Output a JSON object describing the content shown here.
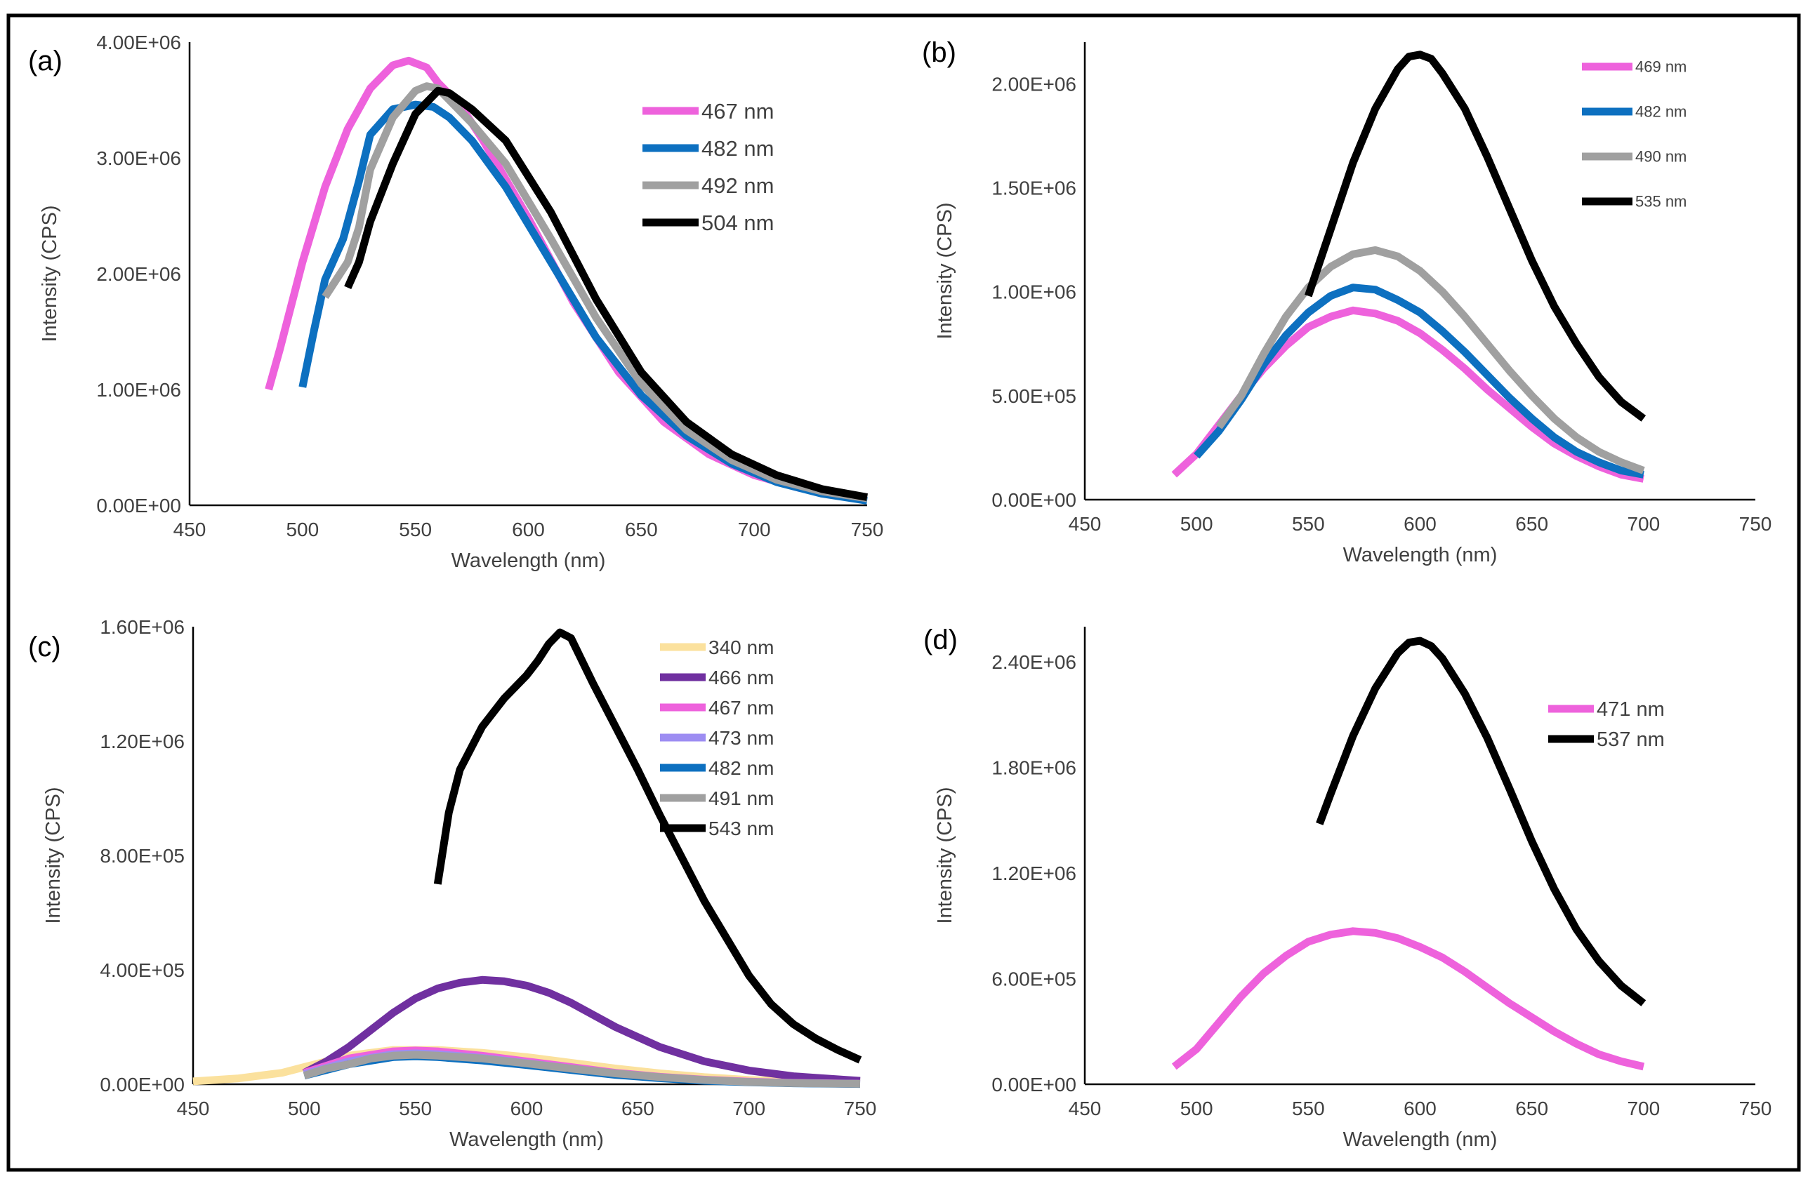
{
  "colors": {
    "pink": "#ee62dc",
    "blue": "#0d70c0",
    "gray": "#a0a0a0",
    "black": "#000000",
    "yellow": "#fbe19d",
    "purple": "#7030a0",
    "lavender": "#9d8df2",
    "frame": "#000000",
    "axis": "#000000",
    "text": "#404040"
  },
  "chart_data": [
    {
      "panel": "(a)",
      "type": "line",
      "xlabel": "Wavelength (nm)",
      "ylabel": "Intensity (CPS)",
      "xlim": [
        450,
        750
      ],
      "xticks": [
        "450",
        "500",
        "550",
        "600",
        "650",
        "700",
        "750"
      ],
      "xtick_values": [
        450,
        500,
        550,
        600,
        650,
        700,
        750
      ],
      "ylim": [
        0,
        4000000
      ],
      "yticks": [
        "0.00E+00",
        "1.00E+06",
        "2.00E+06",
        "3.00E+06",
        "4.00E+06"
      ],
      "ytick_values": [
        0,
        1000000,
        2000000,
        3000000,
        4000000
      ],
      "legend_position": "upper-right",
      "series": [
        {
          "name": "467 nm",
          "color": "pink",
          "x": [
            485,
            490,
            500,
            510,
            520,
            530,
            540,
            547,
            555,
            560,
            570,
            580,
            600,
            620,
            640,
            660,
            680,
            700,
            720,
            740,
            750
          ],
          "values": [
            1000000,
            1350000,
            2100000,
            2750000,
            3250000,
            3600000,
            3800000,
            3840000,
            3780000,
            3650000,
            3450000,
            3150000,
            2480000,
            1750000,
            1150000,
            720000,
            440000,
            260000,
            150000,
            90000,
            70000
          ]
        },
        {
          "name": "482 nm",
          "color": "blue",
          "x": [
            500,
            505,
            510,
            518,
            525,
            530,
            540,
            550,
            558,
            565,
            575,
            590,
            610,
            630,
            650,
            670,
            690,
            710,
            730,
            750
          ],
          "values": [
            1020000,
            1500000,
            1950000,
            2300000,
            2800000,
            3200000,
            3420000,
            3460000,
            3440000,
            3350000,
            3150000,
            2750000,
            2100000,
            1450000,
            950000,
            600000,
            360000,
            200000,
            100000,
            40000
          ]
        },
        {
          "name": "492 nm",
          "color": "gray",
          "x": [
            510,
            515,
            520,
            525,
            530,
            540,
            550,
            555,
            560,
            565,
            575,
            590,
            610,
            630,
            650,
            670,
            690,
            710,
            730,
            750
          ],
          "values": [
            1800000,
            1950000,
            2100000,
            2400000,
            2900000,
            3350000,
            3580000,
            3620000,
            3600000,
            3500000,
            3300000,
            2950000,
            2300000,
            1620000,
            1050000,
            650000,
            390000,
            220000,
            120000,
            60000
          ]
        },
        {
          "name": "504 nm",
          "color": "black",
          "x": [
            520,
            525,
            530,
            540,
            550,
            560,
            565,
            575,
            590,
            610,
            630,
            650,
            670,
            690,
            710,
            730,
            750
          ],
          "values": [
            1880000,
            2100000,
            2450000,
            2950000,
            3380000,
            3580000,
            3560000,
            3420000,
            3150000,
            2530000,
            1780000,
            1150000,
            720000,
            440000,
            260000,
            140000,
            70000
          ]
        }
      ]
    },
    {
      "panel": "(b)",
      "type": "line",
      "xlabel": "Wavelength (nm)",
      "ylabel": "Intensity (CPS)",
      "xlim": [
        450,
        750
      ],
      "xticks": [
        "450",
        "500",
        "550",
        "600",
        "650",
        "700",
        "750"
      ],
      "xtick_values": [
        450,
        500,
        550,
        600,
        650,
        700,
        750
      ],
      "ylim": [
        0,
        2200000
      ],
      "yticks": [
        "0.00E+00",
        "5.00E+05",
        "1.00E+06",
        "1.50E+06",
        "2.00E+06"
      ],
      "ytick_values": [
        0,
        500000,
        1000000,
        1500000,
        2000000
      ],
      "legend_position": "upper-right",
      "series": [
        {
          "name": "469 nm",
          "color": "pink",
          "x": [
            490,
            500,
            510,
            520,
            530,
            540,
            550,
            560,
            570,
            580,
            590,
            600,
            610,
            620,
            630,
            640,
            650,
            660,
            670,
            680,
            690,
            700
          ],
          "values": [
            120000,
            220000,
            360000,
            500000,
            630000,
            740000,
            830000,
            880000,
            910000,
            895000,
            860000,
            800000,
            720000,
            630000,
            530000,
            440000,
            350000,
            270000,
            210000,
            160000,
            120000,
            100000
          ]
        },
        {
          "name": "482 nm",
          "color": "blue",
          "x": [
            500,
            510,
            520,
            530,
            540,
            550,
            560,
            570,
            580,
            590,
            600,
            610,
            620,
            630,
            640,
            650,
            660,
            670,
            680,
            690,
            700
          ],
          "values": [
            210000,
            330000,
            480000,
            650000,
            790000,
            900000,
            980000,
            1020000,
            1010000,
            960000,
            900000,
            810000,
            710000,
            600000,
            490000,
            390000,
            300000,
            230000,
            180000,
            140000,
            120000
          ]
        },
        {
          "name": "490 nm",
          "color": "gray",
          "x": [
            510,
            520,
            530,
            540,
            550,
            560,
            570,
            580,
            590,
            600,
            610,
            620,
            630,
            640,
            650,
            660,
            670,
            680,
            690,
            700
          ],
          "values": [
            350000,
            500000,
            700000,
            880000,
            1020000,
            1120000,
            1180000,
            1200000,
            1170000,
            1100000,
            1000000,
            880000,
            750000,
            620000,
            500000,
            390000,
            300000,
            230000,
            180000,
            140000
          ]
        },
        {
          "name": "535 nm",
          "color": "black",
          "x": [
            550,
            560,
            570,
            580,
            590,
            595,
            600,
            605,
            610,
            620,
            630,
            640,
            650,
            660,
            670,
            680,
            690,
            700
          ],
          "values": [
            980000,
            1300000,
            1620000,
            1880000,
            2070000,
            2130000,
            2140000,
            2120000,
            2050000,
            1880000,
            1650000,
            1400000,
            1150000,
            930000,
            750000,
            590000,
            470000,
            390000
          ]
        }
      ]
    },
    {
      "panel": "(c)",
      "type": "line",
      "xlabel": "Wavelength (nm)",
      "ylabel": "Intensity (CPS)",
      "xlim": [
        450,
        750
      ],
      "xticks": [
        "450",
        "500",
        "550",
        "600",
        "650",
        "700",
        "750"
      ],
      "xtick_values": [
        450,
        500,
        550,
        600,
        650,
        700,
        750
      ],
      "ylim": [
        0,
        1600000
      ],
      "yticks": [
        "0.00E+00",
        "4.00E+05",
        "8.00E+05",
        "1.20E+06",
        "1.60E+06"
      ],
      "ytick_values": [
        0,
        400000,
        800000,
        1200000,
        1600000
      ],
      "legend_position": "upper-right",
      "series": [
        {
          "name": "340 nm",
          "color": "yellow",
          "x": [
            450,
            470,
            490,
            500,
            520,
            540,
            560,
            580,
            600,
            620,
            640,
            660,
            680,
            700,
            720,
            750
          ],
          "values": [
            10000,
            20000,
            40000,
            60000,
            100000,
            120000,
            120000,
            110000,
            95000,
            75000,
            55000,
            38000,
            25000,
            15000,
            10000,
            5000
          ]
        },
        {
          "name": "466 nm",
          "color": "purple",
          "x": [
            500,
            510,
            520,
            530,
            540,
            550,
            560,
            570,
            580,
            590,
            600,
            610,
            620,
            640,
            660,
            680,
            700,
            720,
            750
          ],
          "values": [
            40000,
            80000,
            130000,
            190000,
            250000,
            300000,
            335000,
            355000,
            365000,
            360000,
            345000,
            320000,
            285000,
            200000,
            130000,
            80000,
            48000,
            28000,
            12000
          ]
        },
        {
          "name": "467 nm",
          "color": "pink",
          "x": [
            500,
            520,
            540,
            550,
            560,
            580,
            600,
            620,
            640,
            660,
            680,
            700,
            720,
            750
          ],
          "values": [
            40000,
            90000,
            115000,
            118000,
            115000,
            100000,
            80000,
            60000,
            40000,
            26000,
            16000,
            9000,
            5000,
            2000
          ]
        },
        {
          "name": "473 nm",
          "color": "lavender",
          "x": [
            500,
            520,
            540,
            550,
            560,
            580,
            600,
            620,
            640,
            660,
            680,
            700,
            720,
            750
          ],
          "values": [
            35000,
            80000,
            105000,
            108000,
            105000,
            92000,
            74000,
            55000,
            37000,
            24000,
            14000,
            8000,
            4000,
            1500
          ]
        },
        {
          "name": "482 nm",
          "color": "blue",
          "x": [
            500,
            520,
            540,
            550,
            560,
            580,
            600,
            620,
            640,
            660,
            680,
            700,
            720,
            750
          ],
          "values": [
            30000,
            70000,
            95000,
            98000,
            95000,
            83000,
            67000,
            50000,
            33000,
            21000,
            12000,
            7000,
            3500,
            1000
          ]
        },
        {
          "name": "491 nm",
          "color": "gray",
          "x": [
            500,
            510,
            520,
            530,
            540,
            550,
            560,
            580,
            600,
            620,
            640,
            660,
            680,
            700,
            720,
            750
          ],
          "values": [
            30000,
            55000,
            70000,
            90000,
            100000,
            103000,
            100000,
            90000,
            73000,
            55000,
            38000,
            25000,
            15000,
            8000,
            4000,
            1500
          ]
        },
        {
          "name": "543 nm",
          "color": "black",
          "x": [
            560,
            565,
            570,
            580,
            590,
            600,
            605,
            610,
            615,
            620,
            630,
            640,
            650,
            660,
            670,
            680,
            690,
            700,
            710,
            720,
            730,
            740,
            750
          ],
          "values": [
            700000,
            950000,
            1100000,
            1250000,
            1350000,
            1430000,
            1480000,
            1540000,
            1580000,
            1560000,
            1400000,
            1250000,
            1100000,
            940000,
            790000,
            640000,
            510000,
            380000,
            280000,
            210000,
            160000,
            120000,
            85000
          ]
        }
      ]
    },
    {
      "panel": "(d)",
      "type": "line",
      "xlabel": "Wavelength (nm)",
      "ylabel": "Intensity (CPS)",
      "xlim": [
        450,
        750
      ],
      "xticks": [
        "450",
        "500",
        "550",
        "600",
        "650",
        "700",
        "750"
      ],
      "xtick_values": [
        450,
        500,
        550,
        600,
        650,
        700,
        750
      ],
      "ylim": [
        0,
        2600000
      ],
      "yticks": [
        "0.00E+00",
        "6.00E+05",
        "1.20E+06",
        "1.80E+06",
        "2.40E+06"
      ],
      "ytick_values": [
        0,
        600000,
        1200000,
        1800000,
        2400000
      ],
      "legend_position": "upper-right",
      "series": [
        {
          "name": "471 nm",
          "color": "pink",
          "x": [
            490,
            500,
            510,
            520,
            530,
            540,
            550,
            560,
            570,
            580,
            590,
            600,
            610,
            620,
            630,
            640,
            650,
            660,
            670,
            680,
            690,
            700
          ],
          "values": [
            100000,
            200000,
            350000,
            500000,
            630000,
            730000,
            810000,
            850000,
            870000,
            860000,
            830000,
            780000,
            720000,
            640000,
            550000,
            460000,
            380000,
            300000,
            230000,
            170000,
            130000,
            100000
          ]
        },
        {
          "name": "537 nm",
          "color": "black",
          "x": [
            555,
            560,
            570,
            580,
            590,
            595,
            600,
            605,
            610,
            620,
            630,
            640,
            650,
            660,
            670,
            680,
            690,
            700
          ],
          "values": [
            1480000,
            1650000,
            1980000,
            2250000,
            2450000,
            2510000,
            2520000,
            2490000,
            2420000,
            2220000,
            1970000,
            1680000,
            1380000,
            1110000,
            880000,
            700000,
            560000,
            460000
          ]
        }
      ]
    }
  ]
}
